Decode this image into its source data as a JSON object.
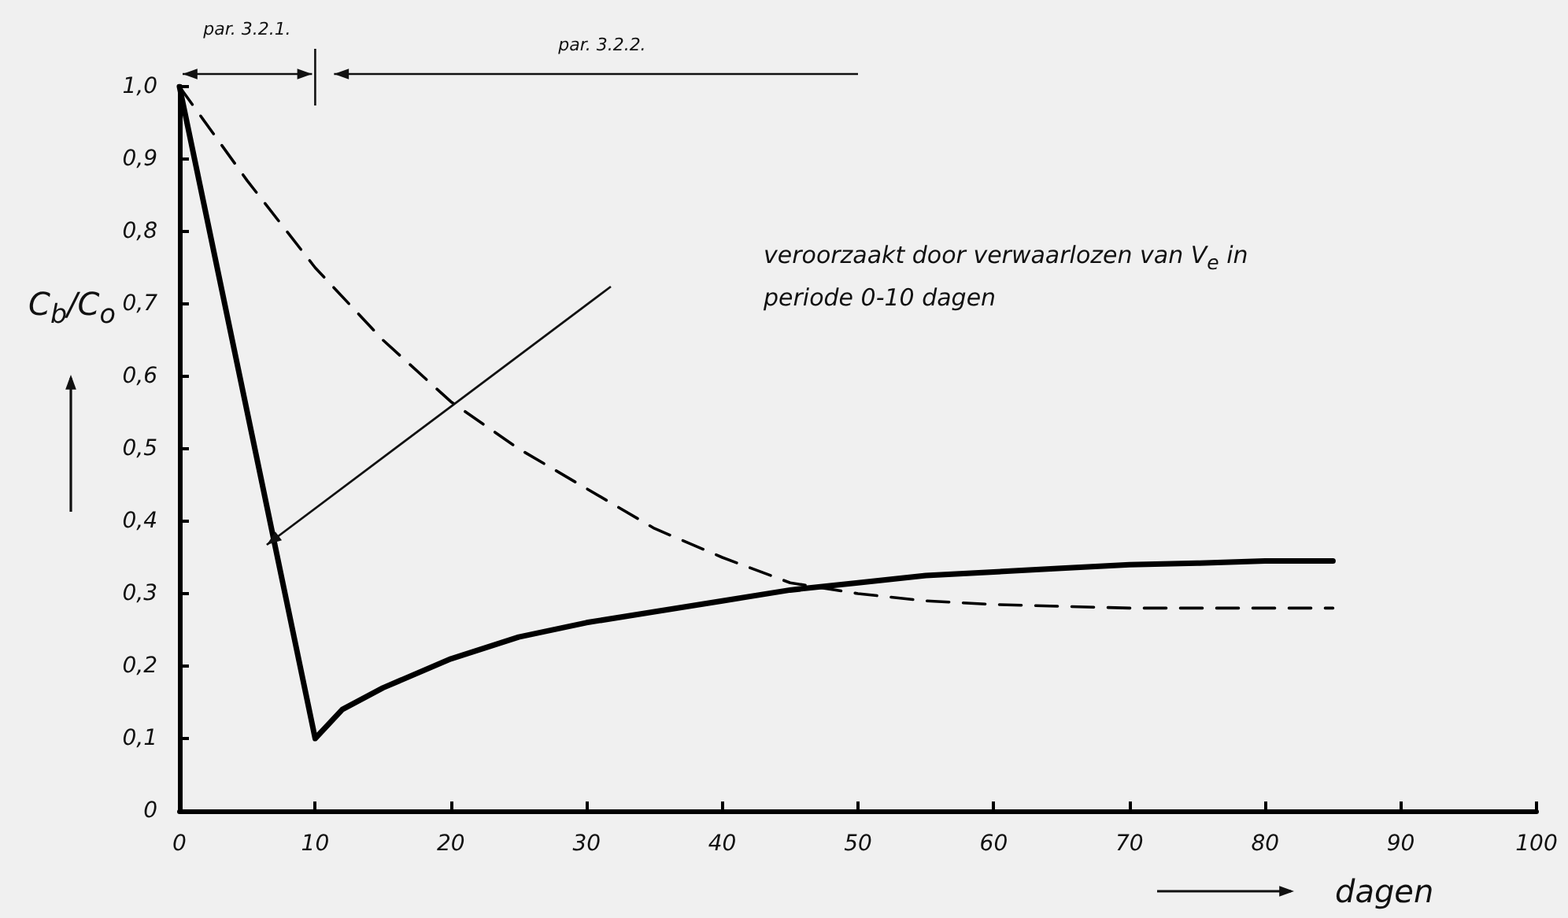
{
  "chart_data": {
    "type": "line",
    "xlabel": "dagen",
    "ylabel": "C$_{b}$/C$_{o}$",
    "xlim": [
      0,
      100
    ],
    "xticks": [
      0,
      10,
      20,
      30,
      40,
      50,
      60,
      70,
      80,
      90,
      100
    ],
    "ylim": [
      0,
      1.0
    ],
    "yticks": [
      {
        "value": 0,
        "label": "0"
      },
      {
        "value": 0.1,
        "label": "0,1"
      },
      {
        "value": 0.2,
        "label": "0,2"
      },
      {
        "value": 0.3,
        "label": "0,3"
      },
      {
        "value": 0.4,
        "label": "0,4"
      },
      {
        "value": 0.5,
        "label": "0,5"
      },
      {
        "value": 0.6,
        "label": "0,6"
      },
      {
        "value": 0.7,
        "label": "0,7"
      },
      {
        "value": 0.8,
        "label": "0,8"
      },
      {
        "value": 0.9,
        "label": "0,9"
      },
      {
        "value": 1.0,
        "label": "1,0"
      }
    ],
    "grid": false,
    "marker": "none",
    "series": [
      {
        "color": "#000000",
        "line_style": "solid",
        "x": [
          0,
          10,
          12,
          15,
          20,
          25,
          30,
          35,
          40,
          45,
          50,
          55,
          60,
          65,
          70,
          75,
          80,
          85
        ],
        "values": [
          1.0,
          0.1,
          0.14,
          0.17,
          0.21,
          0.24,
          0.26,
          0.275,
          0.29,
          0.305,
          0.315,
          0.325,
          0.33,
          0.335,
          0.34,
          0.342,
          0.345,
          0.345
        ]
      },
      {
        "color": "#000000",
        "line_style": "dashed",
        "x": [
          0,
          5,
          10,
          15,
          20,
          25,
          30,
          35,
          40,
          45,
          50,
          55,
          60,
          70,
          85
        ],
        "values": [
          1.0,
          0.87,
          0.75,
          0.65,
          0.565,
          0.5,
          0.445,
          0.39,
          0.35,
          0.315,
          0.3,
          0.29,
          0.285,
          0.28,
          0.28
        ]
      }
    ],
    "annotations": [
      "par. 3.2.1.",
      "par. 3.2.2.",
      "veroorzaakt door verwaarlozen van V$_{e}$ in periode 0-10 dagen"
    ]
  }
}
